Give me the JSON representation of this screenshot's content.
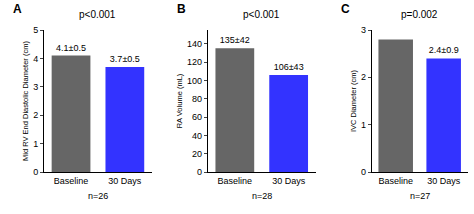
{
  "chart_data": [
    {
      "type": "bar",
      "label": "A",
      "title": "p<0.001",
      "y_label": "Mid RV End Diastolic Diameter (cm)",
      "categories": [
        "Baseline",
        "30 Days"
      ],
      "values": [
        4.1,
        3.7
      ],
      "value_labels": [
        "4.1±0.5",
        "3.7±0.5"
      ],
      "colors": [
        "#666666",
        "#3333ff"
      ],
      "ylim": [
        0,
        5
      ],
      "yticks": [
        0,
        1,
        2,
        3,
        4,
        5
      ],
      "grid": false,
      "data_labels": true,
      "note": "n=26"
    },
    {
      "type": "bar",
      "label": "B",
      "title": "p<0.001",
      "y_label": "RA Volume (mL)",
      "categories": [
        "Baseline",
        "30 Days"
      ],
      "values": [
        135,
        106
      ],
      "value_labels": [
        "135±42",
        "106±43"
      ],
      "colors": [
        "#666666",
        "#3333ff"
      ],
      "ylim": [
        0,
        155
      ],
      "yticks": [
        0,
        20,
        40,
        60,
        80,
        100,
        120,
        140
      ],
      "grid": false,
      "data_labels": true,
      "note": "n=28"
    },
    {
      "type": "bar",
      "label": "C",
      "title": "p=0.002",
      "y_label": "IVC Diameter (cm)",
      "categories": [
        "Baseline",
        "30 Days"
      ],
      "values": [
        2.8,
        2.4
      ],
      "value_labels": [
        null,
        "2.4±0.9"
      ],
      "colors": [
        "#666666",
        "#3333ff"
      ],
      "ylim": [
        0,
        3
      ],
      "yticks": [
        0,
        1,
        2,
        3
      ],
      "grid": false,
      "data_labels": true,
      "note": "n=27"
    }
  ]
}
